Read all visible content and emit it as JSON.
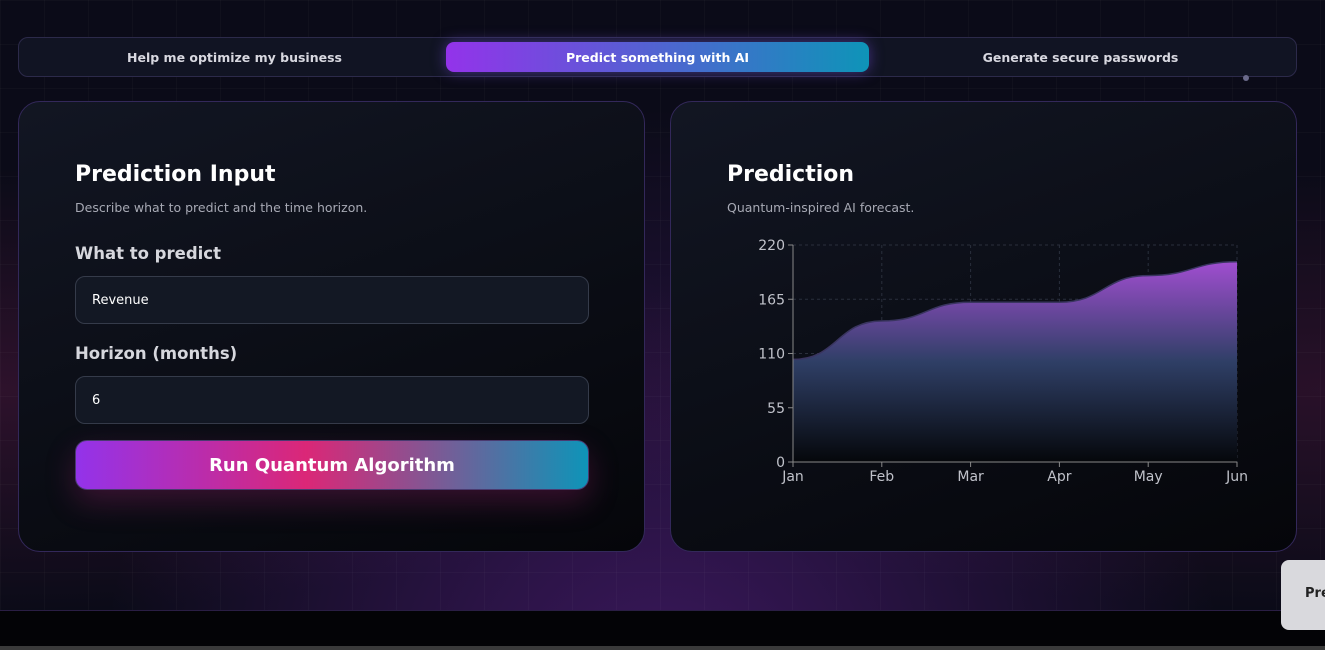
{
  "tabs": [
    {
      "label": "Help me optimize my business",
      "active": false
    },
    {
      "label": "Predict something with AI",
      "active": true
    },
    {
      "label": "Generate secure passwords",
      "active": false
    }
  ],
  "input_card": {
    "title": "Prediction Input",
    "subtitle": "Describe what to predict and the time horizon.",
    "what_label": "What to predict",
    "what_value": "Revenue",
    "horizon_label": "Horizon (months)",
    "horizon_value": "6",
    "run_label": "Run Quantum Algorithm"
  },
  "prediction_card": {
    "title": "Prediction",
    "subtitle": "Quantum-inspired AI forecast."
  },
  "toast": {
    "text": "Pre"
  },
  "colors": {
    "accent_start": "#9333ea",
    "accent_mid": "#db2777",
    "accent_end": "#0e94b8"
  },
  "chart_data": {
    "type": "area",
    "categories": [
      "Jan",
      "Feb",
      "Mar",
      "Apr",
      "May",
      "Jun"
    ],
    "values": [
      104,
      143,
      162,
      162,
      189,
      203
    ],
    "ylim": [
      0,
      220
    ],
    "yticks": [
      0,
      55,
      110,
      165,
      220
    ],
    "grid": true,
    "title": "",
    "xlabel": "",
    "ylabel": ""
  }
}
